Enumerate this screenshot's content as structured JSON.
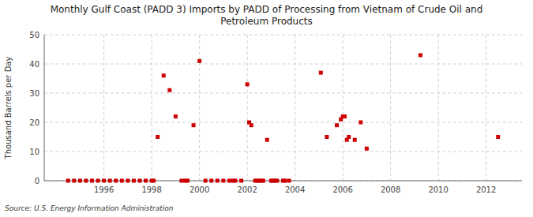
{
  "chart_data": {
    "type": "scatter",
    "title": "Monthly Gulf Coast (PADD 3) Imports by PADD of Processing from Vietnam of Crude Oil and\nPetroleum Products",
    "ylabel": "Thousand Barrels per Day",
    "source": "Source: U.S. Energy Information Administration",
    "color": "#cc0000",
    "marker": "square",
    "grid": true,
    "xlim": [
      1993.5,
      2013.5
    ],
    "ylim": [
      0,
      50
    ],
    "xticks": [
      1996,
      1998,
      2000,
      2002,
      2004,
      2006,
      2008,
      2010,
      2012
    ],
    "yticks": [
      0,
      10,
      20,
      30,
      40,
      50
    ],
    "x": [
      1994.5,
      1994.75,
      1995.0,
      1995.25,
      1995.5,
      1995.75,
      1996.0,
      1996.25,
      1996.5,
      1996.75,
      1997.0,
      1997.25,
      1997.5,
      1997.75,
      1998.0,
      1998.08,
      1998.25,
      1998.5,
      1998.75,
      1999.0,
      1999.25,
      1999.4,
      1999.5,
      1999.75,
      2000.0,
      2000.25,
      2000.5,
      2000.75,
      2001.0,
      2001.25,
      2001.4,
      2001.5,
      2001.75,
      2002.0,
      2002.08,
      2002.17,
      2002.33,
      2002.42,
      2002.5,
      2002.58,
      2002.67,
      2002.83,
      2003.0,
      2003.08,
      2003.17,
      2003.25,
      2003.5,
      2003.58,
      2003.75,
      2005.08,
      2005.33,
      2005.75,
      2005.92,
      2006.0,
      2006.08,
      2006.17,
      2006.25,
      2006.5,
      2006.75,
      2007.0,
      2009.25,
      2012.5
    ],
    "values": [
      0,
      0,
      0,
      0,
      0,
      0,
      0,
      0,
      0,
      0,
      0,
      0,
      0,
      0,
      0,
      0,
      15,
      36,
      31,
      22,
      0,
      0,
      0,
      19,
      41,
      0,
      0,
      0,
      0,
      0,
      0,
      0,
      0,
      33,
      20,
      19,
      0,
      0,
      0,
      0,
      0,
      14,
      0,
      0,
      0,
      0,
      0,
      0,
      0,
      37,
      15,
      19,
      21,
      22,
      22,
      14,
      15,
      14,
      20,
      11,
      43,
      15
    ]
  }
}
